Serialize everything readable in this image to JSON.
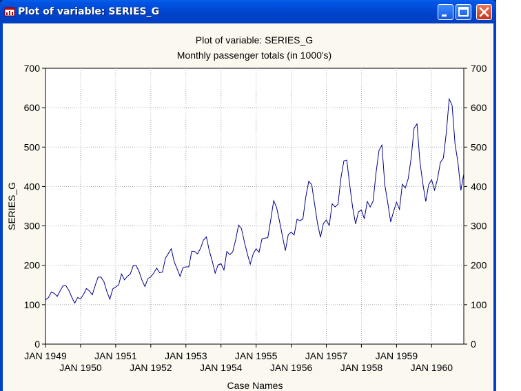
{
  "window": {
    "title": "Plot of variable: SERIES_G",
    "buttons": [
      "minimize",
      "maximize",
      "close"
    ]
  },
  "chart_data": {
    "type": "line",
    "title": "Plot of variable: SERIES_G",
    "subtitle": "Monthly passenger totals (in 1000's)",
    "ylabel": "SERIES_G",
    "xlabel": "Case Names",
    "ylim": [
      0,
      700
    ],
    "yticks": [
      0,
      100,
      200,
      300,
      400,
      500,
      600,
      700
    ],
    "grid": true,
    "line_color": "#00008b",
    "x_tick_labels_row1": [
      "JAN 1949",
      "JAN 1951",
      "JAN 1953",
      "JAN 1955",
      "JAN 1957",
      "JAN 1959"
    ],
    "x_tick_labels_row2": [
      "JAN 1950",
      "JAN 1952",
      "JAN 1954",
      "JAN 1956",
      "JAN 1958",
      "JAN 1960"
    ],
    "series": [
      {
        "values": [
          112,
          118,
          132,
          129,
          121,
          135,
          148,
          148,
          136,
          119,
          104,
          118,
          115,
          126,
          141,
          135,
          125,
          149,
          170,
          170,
          158,
          133,
          114,
          140,
          145,
          150,
          178,
          163,
          172,
          178,
          199,
          199,
          184,
          162,
          146,
          166,
          171,
          180,
          193,
          181,
          183,
          218,
          230,
          242,
          209,
          191,
          172,
          194,
          196,
          196,
          236,
          235,
          229,
          243,
          264,
          272,
          237,
          211,
          180,
          201,
          204,
          188,
          235,
          227,
          234,
          264,
          302,
          293,
          259,
          229,
          203,
          229,
          242,
          233,
          267,
          269,
          270,
          315,
          364,
          347,
          312,
          274,
          237,
          278,
          284,
          277,
          317,
          313,
          318,
          374,
          413,
          405,
          355,
          306,
          271,
          306,
          315,
          301,
          356,
          348,
          355,
          422,
          465,
          467,
          404,
          347,
          305,
          336,
          340,
          318,
          362,
          348,
          363,
          435,
          491,
          505,
          404,
          359,
          310,
          337,
          360,
          342,
          406,
          396,
          420,
          472,
          548,
          559,
          463,
          407,
          362,
          405,
          417,
          391,
          419,
          461,
          472,
          535,
          622,
          606,
          508,
          461,
          390,
          432
        ]
      }
    ]
  }
}
